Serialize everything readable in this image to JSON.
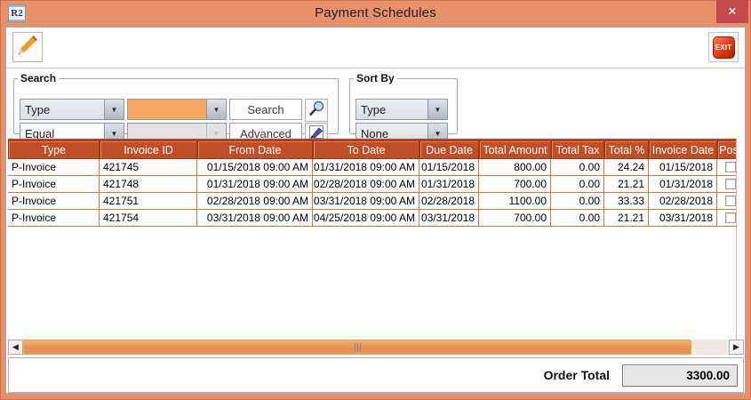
{
  "window": {
    "title": "Payment Schedules",
    "app_icon_text": "R2",
    "close_glyph": "✕"
  },
  "toolbar": {
    "exit_label": "EXIT"
  },
  "search_panel": {
    "legend": "Search",
    "field_selected": "Type",
    "operator_selected": "Equal",
    "value_text": "",
    "value2_text": "",
    "search_label": "Search",
    "advanced_label": "Advanced"
  },
  "sort_panel": {
    "legend": "Sort By",
    "primary_selected": "Type",
    "secondary_selected": "None"
  },
  "table": {
    "columns": [
      "Type",
      "Invoice ID",
      "From Date",
      "To Date",
      "Due Date",
      "Total Amount",
      "Total Tax",
      "Total %",
      "Invoice Date",
      "Pos"
    ],
    "rows": [
      {
        "cells": [
          "P-Invoice",
          "421745",
          "01/15/2018 09:00 AM",
          "01/31/2018 09:00 AM",
          "01/15/2018",
          "800.00",
          "0.00",
          "24.24",
          "01/15/2018"
        ],
        "posted": false
      },
      {
        "cells": [
          "P-Invoice",
          "421748",
          "01/31/2018 09:00 AM",
          "02/28/2018 09:00 AM",
          "01/31/2018",
          "700.00",
          "0.00",
          "21.21",
          "01/31/2018"
        ],
        "posted": false
      },
      {
        "cells": [
          "P-Invoice",
          "421751",
          "02/28/2018 09:00 AM",
          "03/31/2018 09:00 AM",
          "02/28/2018",
          "1100.00",
          "0.00",
          "33.33",
          "02/28/2018"
        ],
        "posted": false
      },
      {
        "cells": [
          "P-Invoice",
          "421754",
          "03/31/2018 09:00 AM",
          "04/25/2018 09:00 AM",
          "03/31/2018",
          "700.00",
          "0.00",
          "21.21",
          "03/31/2018"
        ],
        "posted": false
      }
    ]
  },
  "footer": {
    "order_total_label": "Order Total",
    "order_total_value": "3300.00"
  },
  "colors": {
    "titlebar": "#E8906A",
    "header_bg": "#C04E28",
    "close_red": "#C24A4A",
    "exit_red": "#E23A18",
    "highlight_orange": "#F5A862",
    "scroll_thumb": "#EFA066",
    "row_border": "#C87B41"
  }
}
